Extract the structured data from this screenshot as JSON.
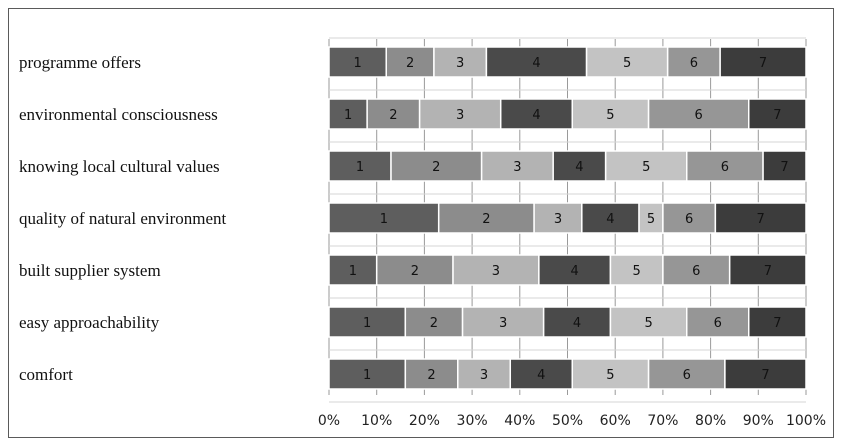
{
  "chart_data": {
    "type": "bar",
    "orientation": "horizontal",
    "stacked": true,
    "normalized_percent": true,
    "categories": [
      "programme offers",
      "environmental consciousness",
      "knowing local cultural values",
      "quality of natural environment",
      "built supplier system",
      "easy approachability",
      "comfort"
    ],
    "series": [
      {
        "name": "1",
        "color": "#5e5e5e",
        "values": [
          12,
          8,
          13,
          23,
          10,
          16,
          16
        ]
      },
      {
        "name": "2",
        "color": "#8c8c8c",
        "values": [
          10,
          11,
          19,
          20,
          16,
          12,
          11
        ]
      },
      {
        "name": "3",
        "color": "#b3b3b3",
        "values": [
          11,
          17,
          15,
          10,
          18,
          17,
          11
        ]
      },
      {
        "name": "4",
        "color": "#4a4a4a",
        "values": [
          21,
          15,
          11,
          12,
          15,
          14,
          13
        ]
      },
      {
        "name": "5",
        "color": "#c3c3c3",
        "values": [
          17,
          16,
          17,
          5,
          11,
          16,
          16
        ]
      },
      {
        "name": "6",
        "color": "#969696",
        "values": [
          11,
          21,
          16,
          11,
          14,
          13,
          16
        ]
      },
      {
        "name": "7",
        "color": "#3c3c3c",
        "values": [
          18,
          12,
          9,
          19,
          16,
          12,
          17
        ]
      }
    ],
    "x_ticks": [
      "0%",
      "10%",
      "20%",
      "30%",
      "40%",
      "50%",
      "60%",
      "70%",
      "80%",
      "90%",
      "100%"
    ],
    "xlim": [
      0,
      100
    ],
    "title": "",
    "xlabel": "",
    "ylabel": "",
    "grid": true,
    "legend": "none"
  }
}
